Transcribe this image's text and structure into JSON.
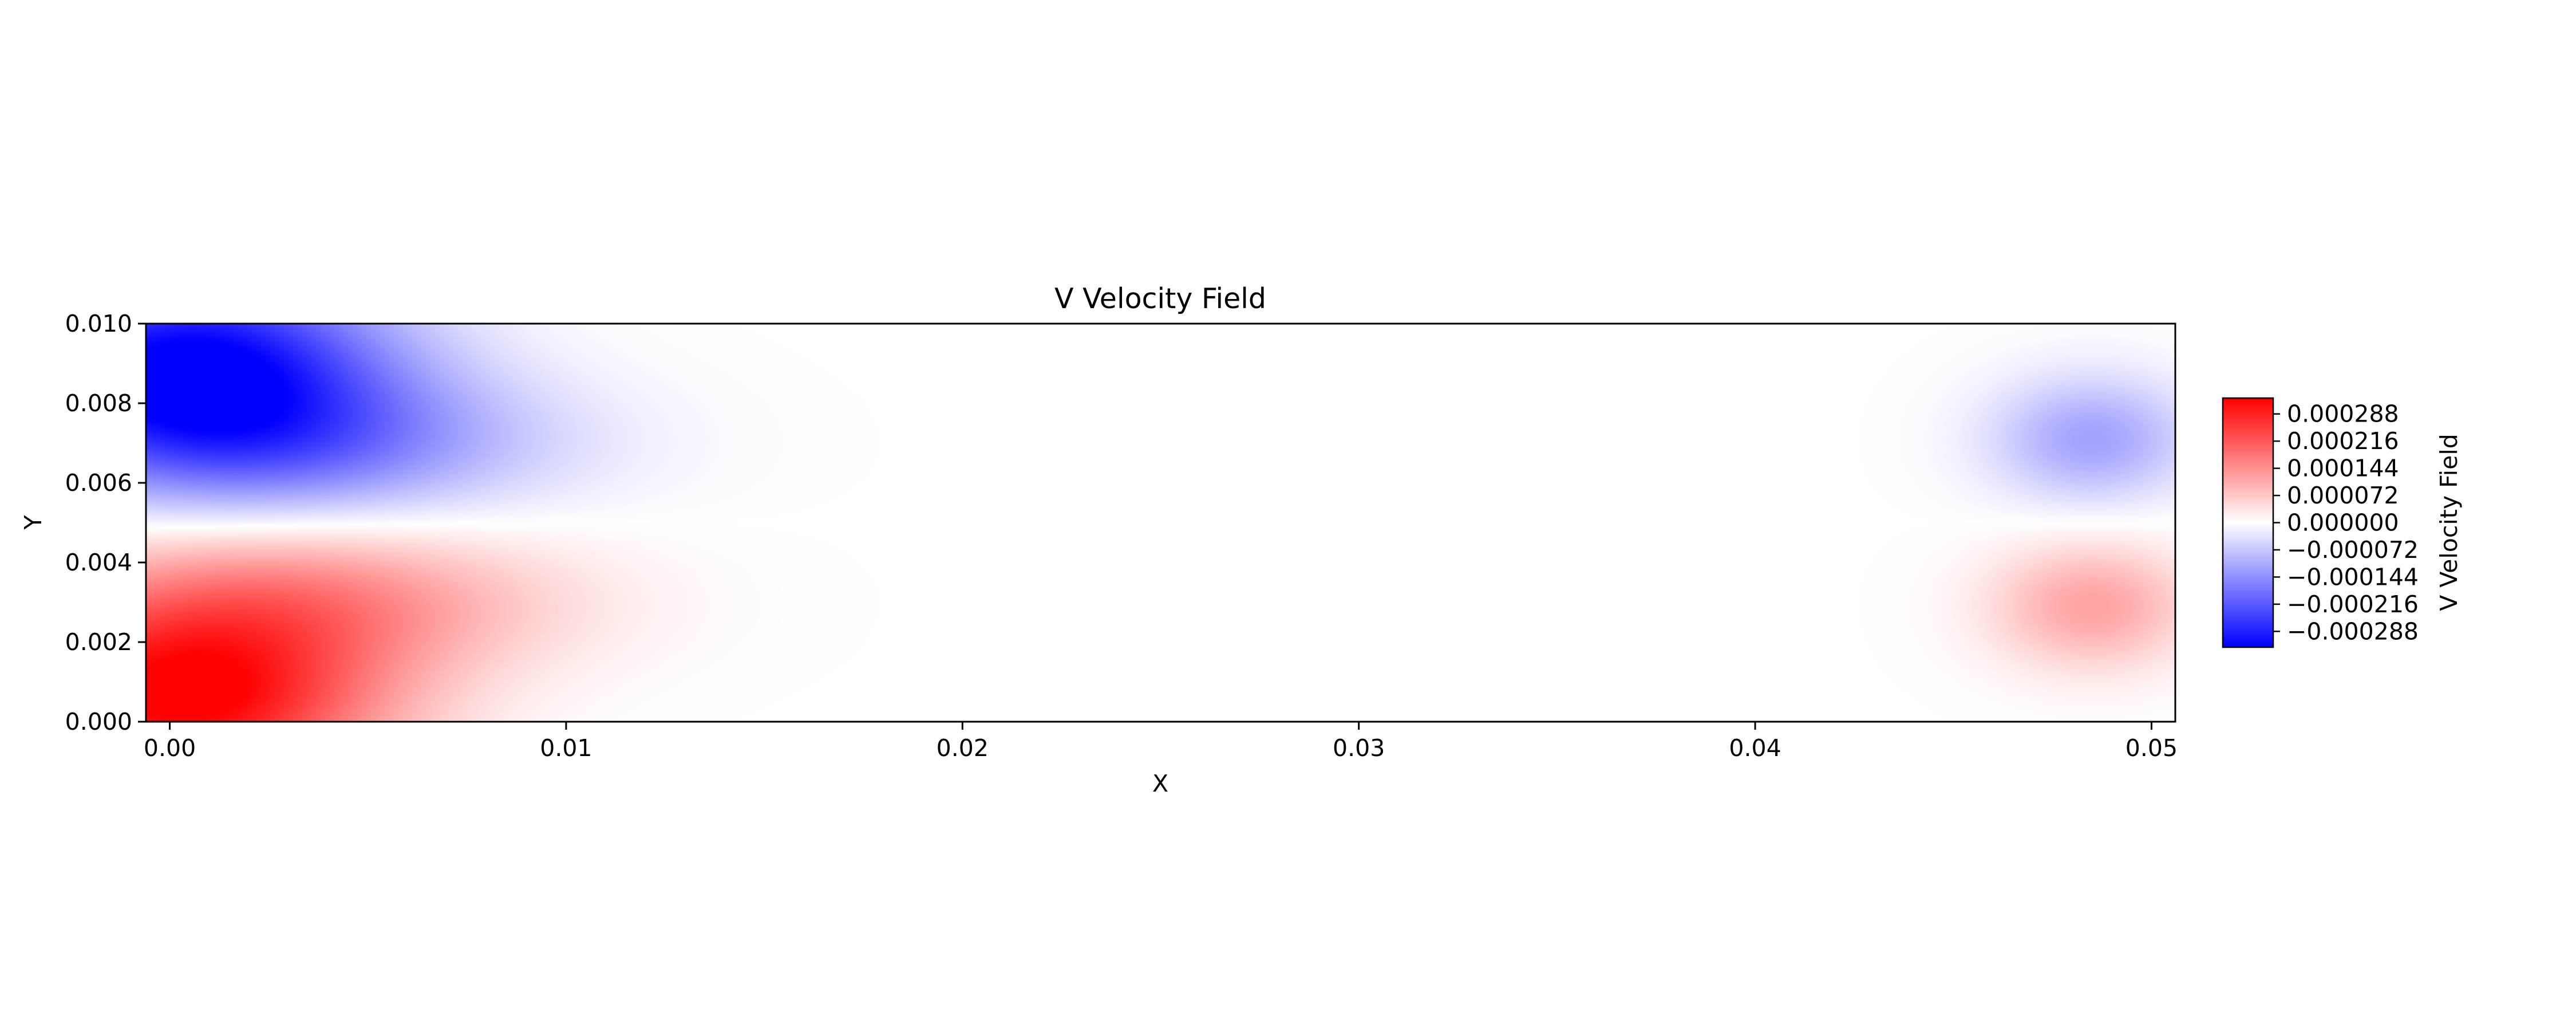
{
  "chart_data": {
    "type": "heatmap",
    "title": "V Velocity Field",
    "xlabel": "X",
    "ylabel": "Y",
    "xlim": [
      -0.0006,
      0.0506
    ],
    "ylim": [
      0.0,
      0.01
    ],
    "x_ticks": [
      0.0,
      0.01,
      0.02,
      0.03,
      0.04,
      0.05
    ],
    "x_tick_labels": [
      "0.00",
      "0.01",
      "0.02",
      "0.03",
      "0.04",
      "0.05"
    ],
    "y_ticks": [
      0.0,
      0.002,
      0.004,
      0.006,
      0.008,
      0.01
    ],
    "y_tick_labels": [
      "0.000",
      "0.002",
      "0.004",
      "0.006",
      "0.008",
      "0.010"
    ],
    "colormap": {
      "name": "bwr",
      "low": "#0000ff",
      "mid": "#ffffff",
      "high": "#ff0000"
    },
    "grid": false,
    "colorbar": {
      "label": "V Velocity Field",
      "range": [
        -0.00033,
        0.00033
      ],
      "ticks": [
        0.000288,
        0.000216,
        0.000144,
        7.2e-05,
        0.0,
        -7.2e-05,
        -0.000144,
        -0.000216,
        -0.000288
      ],
      "tick_labels": [
        "0.000288",
        "0.000216",
        "0.000144",
        "0.000072",
        "0.000000",
        "−0.000072",
        "−0.000144",
        "−0.000216",
        "−0.000288"
      ]
    },
    "features": [
      {
        "x": 0.0005,
        "y": 0.009,
        "value": -0.00033,
        "sx": 0.0035,
        "sy": 0.0017
      },
      {
        "x": 0.0003,
        "y": 0.0005,
        "value": 0.00033,
        "sx": 0.0035,
        "sy": 0.0016
      },
      {
        "x": 0.003,
        "y": 0.007,
        "value": -0.00015,
        "sx": 0.0045,
        "sy": 0.0013
      },
      {
        "x": 0.003,
        "y": 0.003,
        "value": 0.00015,
        "sx": 0.0045,
        "sy": 0.0013
      },
      {
        "x": 0.0485,
        "y": 0.0071,
        "value": -0.00012,
        "sx": 0.0018,
        "sy": 0.0011
      },
      {
        "x": 0.0485,
        "y": 0.0029,
        "value": 0.00012,
        "sx": 0.0018,
        "sy": 0.0011
      }
    ]
  }
}
